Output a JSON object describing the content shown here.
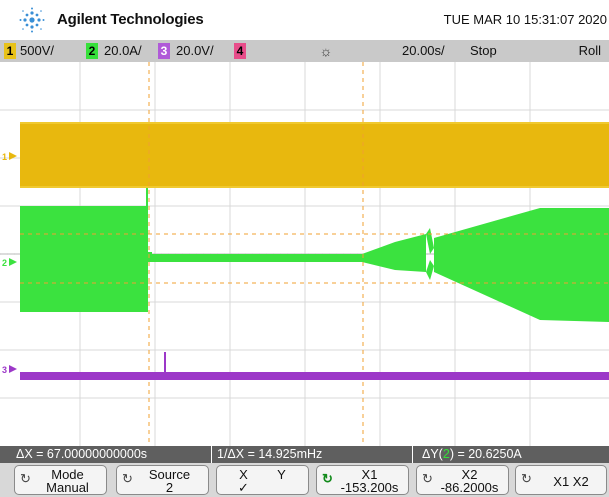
{
  "header": {
    "brand": "Agilent Technologies",
    "datetime": "TUE MAR 10 15:31:07 2020"
  },
  "channels": [
    {
      "num": "1",
      "scale": "500V/",
      "color": "#e8c21a"
    },
    {
      "num": "2",
      "scale": "20.0A/",
      "color": "#36e03a"
    },
    {
      "num": "3",
      "scale": "20.0V/",
      "color": "#b05ad8"
    },
    {
      "num": "4",
      "scale": "",
      "color": "#e84d8a"
    }
  ],
  "status": {
    "trigger_icon": "trigger-star-icon",
    "timebase": "20.00s/",
    "run_state": "Stop",
    "acq_mode": "Roll"
  },
  "markers": {
    "ch1": "1",
    "ch2": "2",
    "ch3": "3"
  },
  "measurements": {
    "delta_x": "ΔX = 67.00000000000s",
    "inv_delta_x": "1/ΔX = 14.925mHz",
    "delta_y_prefix": "ΔY(",
    "delta_y_ch": "2",
    "delta_y_suffix": ") = 20.6250A"
  },
  "softkeys": {
    "mode": {
      "label": "Mode",
      "value": "Manual"
    },
    "source": {
      "label": "Source",
      "value": "2"
    },
    "xy": {
      "x": "X",
      "y": "Y",
      "check": "✓"
    },
    "x1": {
      "label": "X1",
      "value": "-153.200s"
    },
    "x2": {
      "label": "X2",
      "value": "-86.2000s"
    },
    "x1x2": {
      "label": "X1 X2"
    }
  }
}
